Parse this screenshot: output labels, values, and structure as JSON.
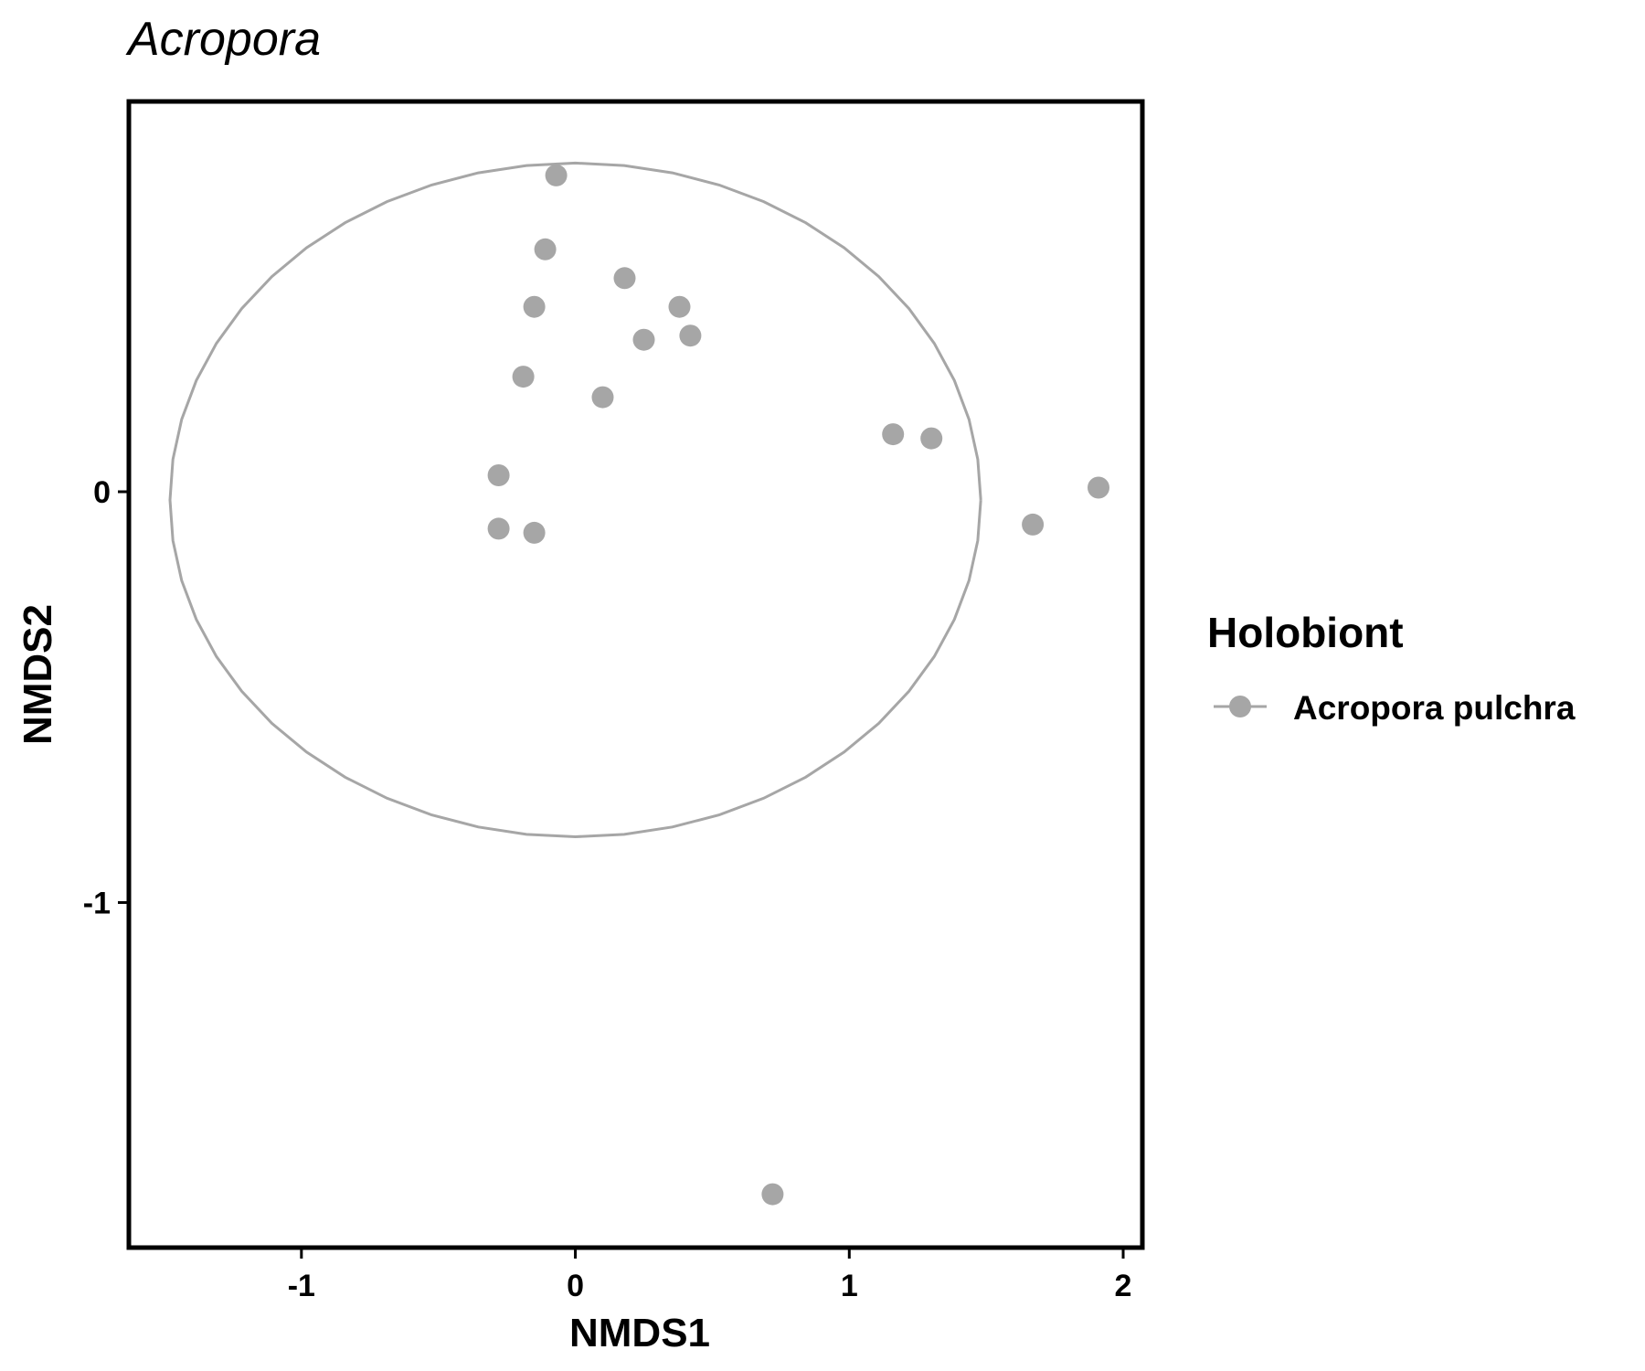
{
  "chart_data": {
    "type": "scatter",
    "title": "Acropora",
    "xlabel": "NMDS1",
    "ylabel": "NMDS2",
    "xlim": [
      -1.63,
      2.07
    ],
    "ylim": [
      -1.84,
      0.95
    ],
    "x_ticks": [
      -1,
      0,
      1,
      2
    ],
    "y_ticks": [
      0,
      -1
    ],
    "grid": false,
    "legend": {
      "title": "Holobiont",
      "placement": "right",
      "entries": [
        "Acropora pulchra"
      ]
    },
    "series": [
      {
        "name": "Acropora pulchra",
        "color": "#a6a6a6",
        "x": [
          -0.07,
          -0.11,
          0.18,
          -0.15,
          0.38,
          0.25,
          0.42,
          -0.19,
          0.1,
          1.16,
          1.3,
          -0.28,
          -0.28,
          -0.15,
          1.67,
          1.91,
          0.72
        ],
        "y": [
          0.77,
          0.59,
          0.52,
          0.45,
          0.45,
          0.37,
          0.38,
          0.28,
          0.23,
          0.14,
          0.13,
          0.04,
          -0.09,
          -0.1,
          -0.08,
          0.01,
          -1.71
        ]
      }
    ],
    "ellipse": {
      "center": [
        0.0,
        -0.02
      ],
      "x_semi_axis": 1.48,
      "y_semi_axis": 0.82,
      "color": "#a6a6a6"
    }
  }
}
